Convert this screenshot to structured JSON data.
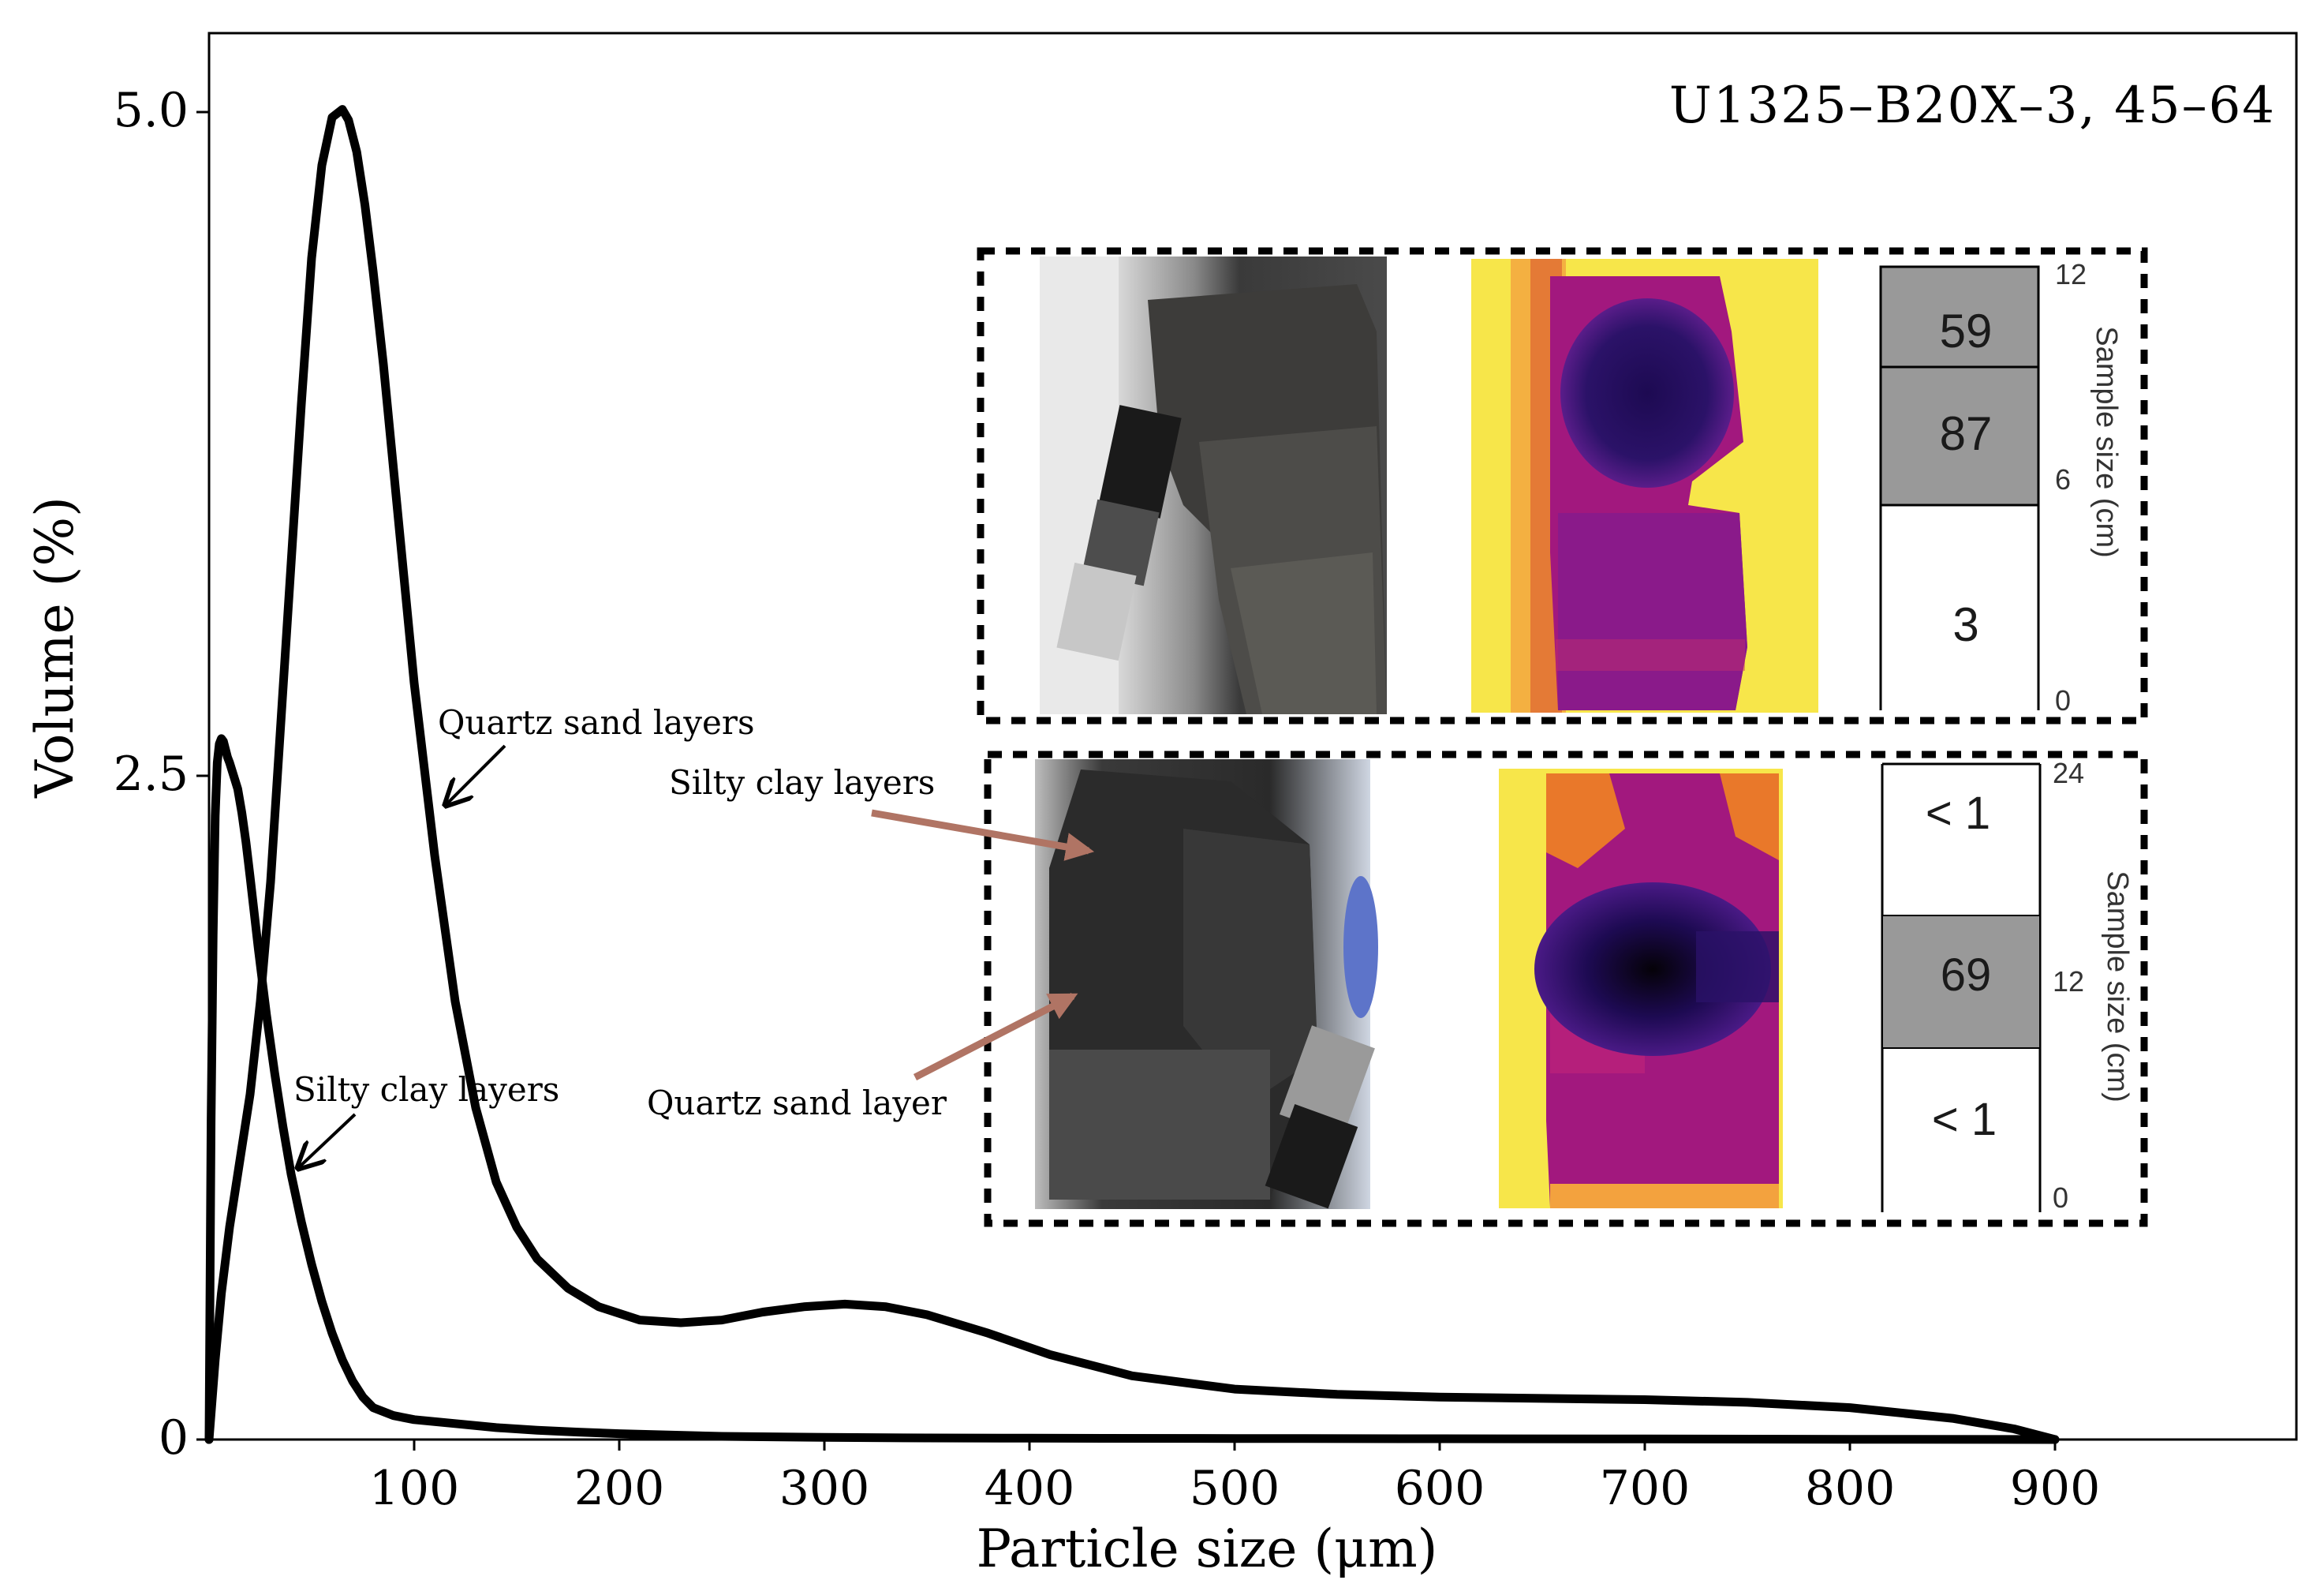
{
  "chart_data": {
    "type": "line",
    "title": "U1325–B20X–3, 45–64",
    "xlabel": "Particle size (μm)",
    "ylabel": "Volume (%)",
    "xlim": [
      0,
      1000
    ],
    "ylim": [
      0,
      5.3
    ],
    "x_ticks": [
      100,
      200,
      300,
      400,
      500,
      600,
      700,
      800,
      900
    ],
    "y_ticks": [
      {
        "value": 0,
        "label": "0"
      },
      {
        "value": 2.5,
        "label": "2.5"
      },
      {
        "value": 5.0,
        "label": "5.0"
      }
    ],
    "grid": false,
    "series": [
      {
        "name": "Quartz sand layers",
        "x": [
          0,
          1,
          3,
          6,
          10,
          15,
          20,
          25,
          30,
          35,
          40,
          45,
          50,
          55,
          60,
          65,
          68,
          72,
          76,
          80,
          85,
          90,
          95,
          100,
          110,
          120,
          130,
          140,
          150,
          160,
          175,
          190,
          210,
          230,
          250,
          270,
          290,
          310,
          330,
          350,
          380,
          410,
          450,
          500,
          550,
          600,
          650,
          700,
          750,
          800,
          850,
          880,
          900
        ],
        "y": [
          0,
          0.1,
          0.3,
          0.55,
          0.8,
          1.05,
          1.3,
          1.65,
          2.1,
          2.7,
          3.3,
          3.9,
          4.45,
          4.8,
          4.98,
          5.01,
          4.97,
          4.85,
          4.65,
          4.4,
          4.05,
          3.65,
          3.25,
          2.85,
          2.2,
          1.65,
          1.25,
          0.97,
          0.8,
          0.68,
          0.57,
          0.5,
          0.45,
          0.44,
          0.45,
          0.48,
          0.5,
          0.51,
          0.5,
          0.47,
          0.4,
          0.32,
          0.24,
          0.19,
          0.17,
          0.16,
          0.155,
          0.15,
          0.14,
          0.12,
          0.08,
          0.04,
          0.0
        ]
      },
      {
        "name": "Silty clay layers",
        "x": [
          0,
          0.5,
          1,
          2,
          3,
          4,
          5,
          6,
          7,
          8,
          9,
          10,
          12,
          14,
          16,
          18,
          20,
          24,
          28,
          32,
          36,
          40,
          45,
          50,
          55,
          60,
          65,
          70,
          75,
          80,
          90,
          100,
          120,
          140,
          160,
          180,
          200,
          250,
          300,
          350,
          400,
          500,
          600,
          700,
          800,
          900
        ],
        "y": [
          0,
          0.6,
          1.2,
          1.9,
          2.35,
          2.55,
          2.62,
          2.64,
          2.63,
          2.6,
          2.57,
          2.55,
          2.5,
          2.45,
          2.36,
          2.25,
          2.12,
          1.85,
          1.6,
          1.38,
          1.18,
          1.0,
          0.82,
          0.66,
          0.52,
          0.4,
          0.3,
          0.22,
          0.16,
          0.12,
          0.09,
          0.075,
          0.06,
          0.045,
          0.035,
          0.028,
          0.022,
          0.012,
          0.008,
          0.006,
          0.005,
          0.004,
          0.003,
          0.002,
          0.001,
          0.0
        ]
      }
    ],
    "annotations": [
      {
        "text": "Quartz sand layers",
        "points_to_series": "Quartz sand layers"
      },
      {
        "text": "Silty clay layers",
        "points_to_series": "Silty clay layers"
      }
    ]
  },
  "inset": {
    "top_panel": {
      "bar_values": [
        "59",
        "87",
        "3"
      ],
      "axis_ticks": [
        "12",
        "6",
        "0"
      ],
      "axis_label": "Sample size (cm)"
    },
    "bottom_panel": {
      "bar_values": [
        "< 1",
        "69",
        "< 1"
      ],
      "axis_ticks": [
        "24",
        "12",
        "0"
      ],
      "axis_label": "Sample size (cm)",
      "arrow_labels": [
        "Silty clay layers",
        "Quartz sand layer"
      ]
    },
    "colors": {
      "arrow": "#b07464",
      "gray_cell": "#999999",
      "thermal_hot": "#f7e64a",
      "thermal_mid": "#a2187e",
      "thermal_cold": "#1d0a52"
    }
  }
}
